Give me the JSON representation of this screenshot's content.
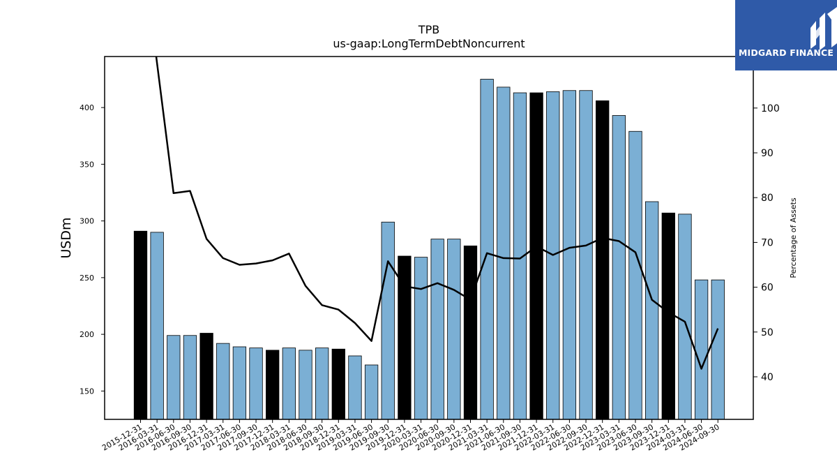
{
  "brand": {
    "name": "MIDGARD FINANCE",
    "bg": "#2f5aa8"
  },
  "chart_data": {
    "type": "bar",
    "title": "TPB",
    "subtitle": "us-gaap:LongTermDebtNoncurrent",
    "ylabel": "USDm",
    "y2label": "Percentage of Assets",
    "ylim": [
      125,
      445
    ],
    "y2lim": [
      30.5,
      111.5
    ],
    "yticks": [
      150,
      200,
      250,
      300,
      350,
      400
    ],
    "y2ticks": [
      40,
      50,
      60,
      70,
      80,
      90,
      100
    ],
    "categories": [
      "2015-12-31",
      "2016-03-31",
      "2016-06-30",
      "2016-09-30",
      "2016-12-31",
      "2017-03-31",
      "2017-06-30",
      "2017-09-30",
      "2017-12-31",
      "2018-03-31",
      "2018-06-30",
      "2018-09-30",
      "2018-12-31",
      "2019-03-31",
      "2019-06-30",
      "2019-09-30",
      "2019-12-31",
      "2020-03-31",
      "2020-06-30",
      "2020-09-30",
      "2020-12-31",
      "2021-03-31",
      "2021-06-30",
      "2021-09-30",
      "2021-12-31",
      "2022-03-31",
      "2022-06-30",
      "2022-09-30",
      "2022-12-31",
      "2023-03-31",
      "2023-06-30",
      "2023-09-30",
      "2023-12-31",
      "2024-03-31",
      "2024-06-30",
      "2024-09-30"
    ],
    "series": [
      {
        "values": [
          291,
          290,
          199,
          199,
          201,
          192,
          189,
          188,
          186,
          188,
          186,
          188,
          187,
          181,
          173,
          299,
          269,
          268,
          284,
          284,
          278,
          425,
          418,
          413,
          413,
          414,
          415,
          415,
          406,
          393,
          379,
          317,
          307,
          306,
          248,
          248
        ]
      },
      {
        "axis": "right",
        "type": "line",
        "values": [
          140,
          110,
          81,
          81.5,
          70.8,
          66.5,
          65,
          65.3,
          66,
          67.5,
          60.3,
          56,
          55,
          52,
          48,
          65.8,
          60.2,
          59.6,
          60.9,
          59.4,
          57.2,
          67.6,
          66.5,
          66.4,
          69.1,
          67.2,
          68.8,
          69.3,
          71,
          70.3,
          67.8,
          57.2,
          54.4,
          52.3,
          41.8,
          50.8
        ]
      }
    ],
    "highlight_bars": [
      "2015-12-31",
      "2016-12-31",
      "2017-12-31",
      "2018-12-31",
      "2019-12-31",
      "2020-12-31",
      "2021-12-31",
      "2022-12-31",
      "2023-12-31"
    ],
    "colors": {
      "bar": "#7bafd4",
      "bar_highlight": "#000000",
      "line": "#000000"
    }
  }
}
